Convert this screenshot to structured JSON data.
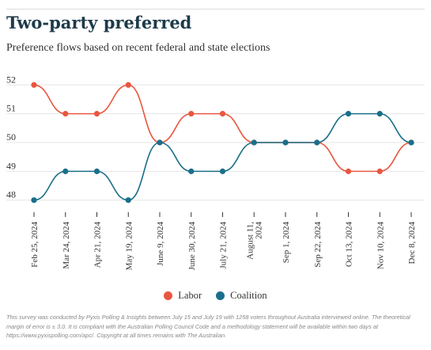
{
  "header": {
    "title": "Two-party preferred",
    "subtitle": "Preference flows based on recent federal and state elections"
  },
  "chart_data": {
    "type": "line",
    "title": "Two-party preferred",
    "subtitle": "Preference flows based on recent federal and state elections",
    "xlabel": "",
    "ylabel": "",
    "categories": [
      "Feb 25, 2024",
      "Mar 24, 2024",
      "Apr 21, 2024",
      "May 19, 2024",
      "June 9, 2024",
      "June 30, 2024",
      "July 21, 2024",
      "August 11, 2024",
      "Sep 1, 2024",
      "Sep 22, 2024",
      "Oct 13, 2024",
      "Nov 10, 2024",
      "Dec 8, 2024"
    ],
    "y_ticks": [
      48,
      49,
      50,
      51,
      52
    ],
    "ylim": [
      47.8,
      52.2
    ],
    "grid": true,
    "legend_position": "bottom-center",
    "series": [
      {
        "name": "Labor",
        "color": "#e8573f",
        "values": [
          52,
          51,
          51,
          52,
          50,
          51,
          51,
          50,
          50,
          50,
          49,
          49,
          50
        ]
      },
      {
        "name": "Coalition",
        "color": "#1a6f8a",
        "values": [
          48,
          49,
          49,
          48,
          50,
          49,
          49,
          50,
          50,
          50,
          51,
          51,
          50
        ]
      }
    ]
  },
  "footer": {
    "note": "This survey was conducted by Pyxis Polling & Insights between July 15 and July 19 with 1258 voters throughout Australia interviewed online. The theoretical margin of error is ± 3.0. It is compliant with the Australian Polling Council Code and a methodology statement will be available within two days at https://www.pyxispolling.com/apc/. Copyright at all times remains with The Australian."
  }
}
